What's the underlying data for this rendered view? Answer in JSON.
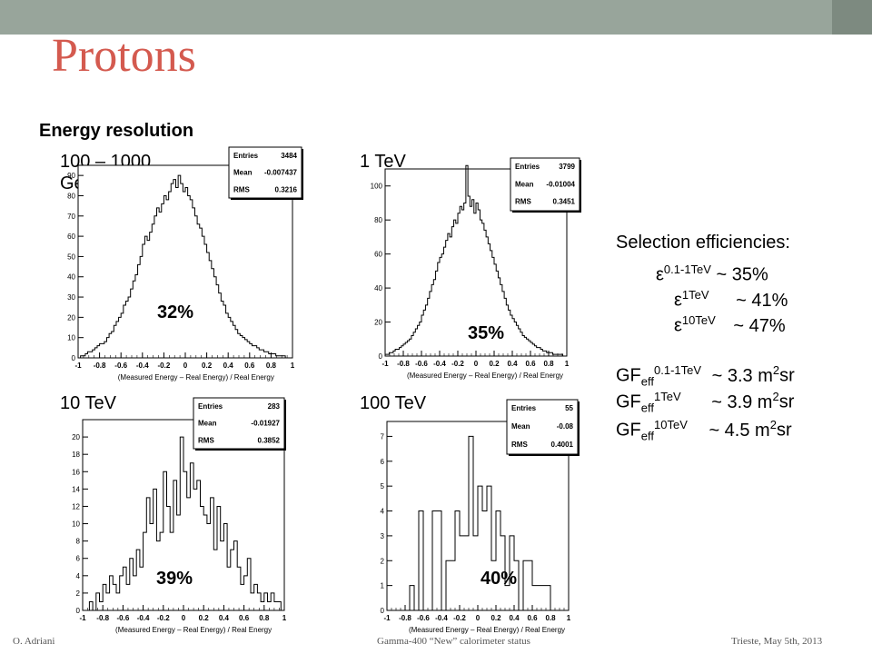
{
  "slide": {
    "title": "Protons",
    "subtitle": "Energy resolution",
    "accent_color": "#d45a4f",
    "topbar_color": "#98a59b"
  },
  "panels": [
    {
      "label": "100 – 1000 GeV",
      "resolution": "32%",
      "entries": "3484",
      "mean": "-0.007437",
      "rms": "0.3216"
    },
    {
      "label": "1 TeV",
      "resolution": "35%",
      "entries": "3799",
      "mean": "-0.01004",
      "rms": "0.3451"
    },
    {
      "label": "10 TeV",
      "resolution": "39%",
      "entries": "283",
      "mean": "-0.01927",
      "rms": "0.3852"
    },
    {
      "label": "100 TeV",
      "resolution": "40%",
      "entries": "55",
      "mean": "-0.08",
      "rms": "0.4001"
    }
  ],
  "stat_labels": {
    "entries": "Entries",
    "mean": "Mean",
    "rms": "RMS"
  },
  "selection": {
    "heading": "Selection efficiencies:",
    "rows": [
      {
        "symbol": "ε",
        "sup": "0.1-1TeV",
        "value": "~ 35%"
      },
      {
        "symbol": "ε",
        "sup": "1TeV",
        "value": "~ 41%"
      },
      {
        "symbol": "ε",
        "sup": "10TeV",
        "value": "~ 47%"
      }
    ]
  },
  "gf": {
    "rows": [
      {
        "sup": "0.1-1TeV",
        "value": "~ 3.3 m"
      },
      {
        "sup": "1TeV",
        "value": "~ 3.9 m"
      },
      {
        "sup": "10TeV",
        "value": "~ 4.5 m"
      }
    ],
    "prefix": "GF",
    "sub": "eff",
    "unit_sup": "2",
    "unit": "sr"
  },
  "footer": {
    "left": "O. Adriani",
    "center": "Gamma-400 “New” calorimeter status",
    "right": "Trieste, May 5th, 2013"
  },
  "chart_data": [
    {
      "type": "bar",
      "xlabel": "(Measured Energy – Real Energy) / Real Energy",
      "xlim": [
        -1,
        1
      ],
      "ylim": [
        0,
        95
      ],
      "yticks": [
        0,
        10,
        20,
        30,
        40,
        50,
        60,
        70,
        80,
        90
      ],
      "xticks": [
        "-1",
        "-0.8",
        "-0.6",
        "-0.4",
        "-0.2",
        "0",
        "0.2",
        "0.4",
        "0.6",
        "0.8",
        "1"
      ],
      "values": [
        0,
        1,
        1,
        2,
        3,
        3,
        4,
        5,
        6,
        7,
        7,
        8,
        10,
        12,
        13,
        16,
        18,
        20,
        22,
        26,
        28,
        30,
        34,
        38,
        41,
        46,
        50,
        56,
        60,
        58,
        62,
        66,
        70,
        74,
        72,
        76,
        80,
        78,
        82,
        86,
        88,
        84,
        90,
        86,
        82,
        84,
        80,
        78,
        74,
        70,
        66,
        64,
        60,
        56,
        52,
        48,
        44,
        40,
        36,
        32,
        28,
        26,
        22,
        20,
        18,
        16,
        14,
        12,
        11,
        10,
        9,
        8,
        7,
        6,
        6,
        5,
        4,
        4,
        3,
        3,
        2,
        2,
        2,
        1,
        1,
        1,
        1,
        0,
        0,
        0
      ]
    },
    {
      "type": "bar",
      "xlabel": "(Measured Energy – Real Energy) / Real Energy",
      "xlim": [
        -1,
        1
      ],
      "ylim": [
        0,
        110
      ],
      "yticks": [
        0,
        20,
        40,
        60,
        80,
        100
      ],
      "xticks": [
        "-1",
        "-0.8",
        "-0.6",
        "-0.4",
        "-0.2",
        "0",
        "0.2",
        "0.4",
        "0.6",
        "0.8",
        "1"
      ],
      "values": [
        1,
        1,
        2,
        2,
        3,
        4,
        4,
        5,
        6,
        7,
        8,
        9,
        10,
        12,
        14,
        16,
        18,
        20,
        24,
        27,
        30,
        34,
        38,
        42,
        45,
        50,
        55,
        58,
        60,
        64,
        68,
        72,
        70,
        76,
        80,
        78,
        84,
        88,
        86,
        90,
        112,
        94,
        88,
        92,
        84,
        90,
        86,
        80,
        78,
        74,
        70,
        66,
        62,
        58,
        54,
        50,
        46,
        42,
        38,
        34,
        30,
        27,
        24,
        22,
        20,
        18,
        16,
        14,
        12,
        11,
        10,
        9,
        8,
        7,
        6,
        5,
        5,
        4,
        3,
        3,
        2,
        2,
        2,
        1,
        1,
        1,
        1,
        1,
        0,
        0
      ]
    },
    {
      "type": "bar",
      "xlabel": "(Measured Energy – Real Energy) / Real Energy",
      "xlim": [
        -1,
        1
      ],
      "ylim": [
        0,
        22
      ],
      "yticks": [
        0,
        2,
        4,
        6,
        8,
        10,
        12,
        14,
        16,
        18,
        20
      ],
      "xticks": [
        "-1",
        "-0.8",
        "-0.6",
        "-0.4",
        "-0.2",
        "0",
        "0.2",
        "0.4",
        "0.6",
        "0.8",
        "1"
      ],
      "values": [
        0,
        0,
        1,
        0,
        2,
        1,
        3,
        2,
        4,
        3,
        2,
        4,
        5,
        3,
        6,
        4,
        7,
        5,
        9,
        13,
        10,
        14,
        8,
        9,
        16,
        12,
        9,
        15,
        11,
        20,
        16,
        13,
        17,
        14,
        15,
        12,
        11,
        10,
        13,
        7,
        12,
        8,
        10,
        5,
        7,
        8,
        5,
        3,
        4,
        6,
        2,
        3,
        2,
        1,
        2,
        1,
        2,
        1,
        1,
        0
      ]
    },
    {
      "type": "bar",
      "xlabel": "(Measured Energy – Real Energy) / Real Energy",
      "xlim": [
        -1,
        1
      ],
      "ylim": [
        0,
        7.6
      ],
      "yticks": [
        0,
        1,
        2,
        3,
        4,
        5,
        6,
        7
      ],
      "xticks": [
        "-1",
        "-0.8",
        "-0.6",
        "-0.4",
        "-0.2",
        "0",
        "0.2",
        "0.4",
        "0.6",
        "0.8",
        "1"
      ],
      "values": [
        0,
        0,
        0,
        0,
        0,
        1,
        0,
        4,
        0,
        0,
        4,
        4,
        0,
        2,
        2,
        4,
        3,
        3,
        7,
        3,
        5,
        4,
        5,
        2,
        4,
        3,
        1,
        3,
        2,
        0,
        2,
        2,
        1,
        1,
        1,
        1,
        0,
        0,
        0,
        0
      ]
    }
  ]
}
